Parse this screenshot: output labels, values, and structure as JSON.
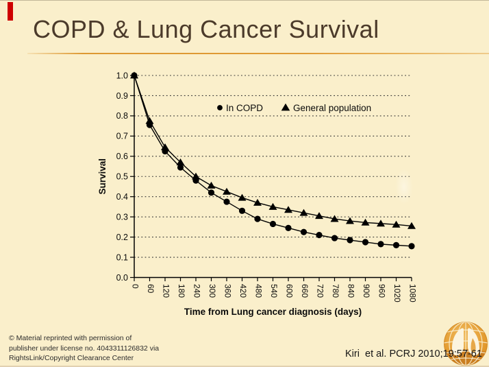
{
  "slide": {
    "title": "COPD & Lung Cancer Survival",
    "background_color": "#FAEFCB",
    "title_color": "#4B3A2A",
    "accent_bar_color": "#CE0000",
    "underline_color": "#DD9832"
  },
  "chart_data": {
    "type": "line",
    "title": "",
    "xlabel": "Time from Lung cancer diagnosis (days)",
    "ylabel": "Survival",
    "x": [
      0,
      60,
      120,
      180,
      240,
      300,
      360,
      420,
      480,
      540,
      600,
      660,
      720,
      780,
      840,
      900,
      960,
      1020,
      1080
    ],
    "series": [
      {
        "name": "In COPD",
        "marker": "circle",
        "color": "#000000",
        "values": [
          1.0,
          0.755,
          0.625,
          0.545,
          0.48,
          0.42,
          0.375,
          0.33,
          0.29,
          0.265,
          0.245,
          0.225,
          0.21,
          0.195,
          0.185,
          0.175,
          0.165,
          0.16,
          0.155
        ]
      },
      {
        "name": "General population",
        "marker": "triangle",
        "color": "#000000",
        "values": [
          1.0,
          0.775,
          0.645,
          0.57,
          0.5,
          0.455,
          0.425,
          0.395,
          0.37,
          0.35,
          0.335,
          0.32,
          0.305,
          0.29,
          0.28,
          0.272,
          0.267,
          0.262,
          0.255
        ]
      }
    ],
    "ylim": [
      0.0,
      1.0
    ],
    "ytick_step": 0.1,
    "xlim": [
      0,
      1080
    ],
    "xtick_step": 60,
    "xtick_rotation": 90,
    "grid": "horizontal dotted",
    "gridline_color": "#333333",
    "legend_position": "inside-top",
    "legend_text": "In COPD / General population"
  },
  "footer": {
    "copyright_lines": [
      "© Material reprinted with permission of",
      "publisher under license no. 4043311126832 via",
      "RightsLink/Copyright Clearance Center"
    ],
    "citation": "Kiri  et al. PCRJ 2010;19:57-61"
  },
  "logo": {
    "name": "lungs-globe-logo",
    "primary_color": "#E39A2E",
    "dark_color": "#C5791F",
    "light_color": "#FCF4DE"
  }
}
